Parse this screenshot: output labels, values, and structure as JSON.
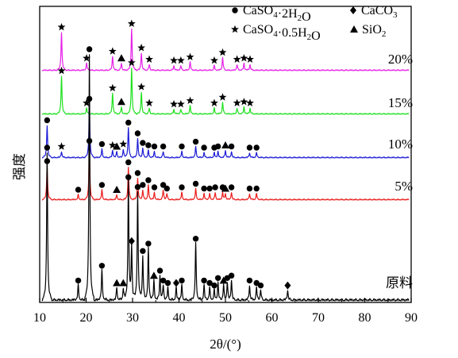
{
  "chart_data": {
    "type": "line",
    "title": "",
    "xlabel": "2θ/(°)",
    "ylabel": "强度",
    "xlim": [
      10,
      90
    ],
    "xticks": [
      10,
      20,
      30,
      40,
      50,
      60,
      70,
      80,
      90
    ],
    "yticks_shown": false,
    "legend": [
      {
        "symbol": "circle",
        "label_parts": [
          [
            "CaSO",
            "n"
          ],
          [
            "4",
            "sub"
          ],
          [
            "·2H",
            "n"
          ],
          [
            "2",
            "sub"
          ],
          [
            "O",
            "n"
          ]
        ]
      },
      {
        "symbol": "diamond",
        "label_parts": [
          [
            "CaCO",
            "n"
          ],
          [
            "3",
            "sub"
          ]
        ]
      },
      {
        "symbol": "star",
        "label_parts": [
          [
            "CaSO",
            "n"
          ],
          [
            "4",
            "sub"
          ],
          [
            "·0.5H",
            "n"
          ],
          [
            "2",
            "sub"
          ],
          [
            "O",
            "n"
          ]
        ]
      },
      {
        "symbol": "triangle",
        "label_parts": [
          [
            "SiO",
            "n"
          ],
          [
            "2",
            "sub"
          ]
        ]
      }
    ],
    "legend_position": "top-right",
    "series": [
      {
        "name": "20%",
        "color": "#e51fe6",
        "peaks": [
          [
            14.7,
            33,
            "star"
          ],
          [
            20.1,
            6,
            "star"
          ],
          [
            25.7,
            12,
            "star"
          ],
          [
            27.6,
            6,
            "triangle"
          ],
          [
            29.8,
            36,
            "star"
          ],
          [
            31.9,
            15,
            "star"
          ],
          [
            33.6,
            5,
            "star"
          ],
          [
            38.9,
            4,
            "star"
          ],
          [
            40.4,
            4,
            "star"
          ],
          [
            42.4,
            7,
            "star"
          ],
          [
            47.6,
            4,
            "star"
          ],
          [
            49.4,
            11,
            "star"
          ],
          [
            52.5,
            5,
            "star"
          ],
          [
            54.0,
            6,
            "star"
          ],
          [
            55.3,
            5,
            "star"
          ]
        ]
      },
      {
        "name": "15%",
        "color": "#1ee01e",
        "peaks": [
          [
            14.7,
            33,
            "star"
          ],
          [
            20.1,
            5,
            "star"
          ],
          [
            25.7,
            18,
            "star"
          ],
          [
            27.6,
            6,
            "triangle"
          ],
          [
            29.8,
            40,
            "star"
          ],
          [
            31.9,
            19,
            "star"
          ],
          [
            33.6,
            5,
            "star"
          ],
          [
            38.9,
            4,
            "star"
          ],
          [
            40.4,
            4,
            "star"
          ],
          [
            42.4,
            7,
            "star"
          ],
          [
            47.6,
            5,
            "star"
          ],
          [
            49.4,
            10,
            "star"
          ],
          [
            52.5,
            5,
            "star"
          ],
          [
            54.0,
            6,
            "star"
          ],
          [
            55.3,
            5,
            "star"
          ]
        ]
      },
      {
        "name": "10%",
        "color": "#1b1bd6",
        "peaks": [
          [
            11.6,
            27,
            "circle"
          ],
          [
            14.7,
            5,
            "star"
          ],
          [
            20.7,
            45,
            "circle"
          ],
          [
            23.4,
            7,
            "circle"
          ],
          [
            25.7,
            6,
            "star"
          ],
          [
            26.6,
            5,
            "triangle"
          ],
          [
            28.0,
            7,
            "star"
          ],
          [
            29.1,
            25,
            "circle"
          ],
          [
            31.1,
            16,
            "circle"
          ],
          [
            32.2,
            8,
            "circle"
          ],
          [
            33.4,
            6,
            "circle"
          ],
          [
            34.7,
            5,
            "circle"
          ],
          [
            36.6,
            5,
            "circle"
          ],
          [
            40.6,
            5,
            "circle"
          ],
          [
            43.6,
            9,
            "circle"
          ],
          [
            45.4,
            4,
            "circle"
          ],
          [
            47.6,
            4,
            "circle"
          ],
          [
            48.4,
            5,
            "circle"
          ],
          [
            50.0,
            6,
            "triangle"
          ],
          [
            51.3,
            5,
            "circle"
          ],
          [
            55.2,
            4,
            "circle"
          ],
          [
            56.7,
            4,
            "circle"
          ]
        ]
      },
      {
        "name": "5%",
        "color": "#ea1c1c",
        "peaks": [
          [
            11.6,
            28,
            "circle"
          ],
          [
            18.3,
            4,
            "circle"
          ],
          [
            20.7,
            45,
            "circle"
          ],
          [
            23.4,
            8,
            "circle"
          ],
          [
            26.6,
            4,
            "triangle"
          ],
          [
            29.1,
            27,
            "circle"
          ],
          [
            31.1,
            18,
            "circle"
          ],
          [
            32.2,
            8,
            "circle"
          ],
          [
            33.4,
            12,
            "circle"
          ],
          [
            34.7,
            6,
            "circle"
          ],
          [
            36.6,
            8,
            "circle"
          ],
          [
            37.4,
            5,
            "circle"
          ],
          [
            40.6,
            6,
            "circle"
          ],
          [
            43.6,
            9,
            "circle"
          ],
          [
            45.4,
            5,
            "circle"
          ],
          [
            46.6,
            5,
            "circle"
          ],
          [
            47.8,
            6,
            "circle"
          ],
          [
            49.4,
            6,
            "circle"
          ],
          [
            50.0,
            5,
            "triangle"
          ],
          [
            51.3,
            6,
            "circle"
          ],
          [
            55.2,
            5,
            "circle"
          ],
          [
            56.7,
            5,
            "circle"
          ]
        ]
      },
      {
        "name": "原料",
        "color": "#000000",
        "peaks": [
          [
            11.6,
            60,
            "circle"
          ],
          [
            18.3,
            6,
            "circle"
          ],
          [
            20.7,
            100,
            "circle"
          ],
          [
            23.4,
            12,
            "circle"
          ],
          [
            26.6,
            5,
            "triangle"
          ],
          [
            28.0,
            5,
            "triangle"
          ],
          [
            29.1,
            48,
            "circle"
          ],
          [
            29.8,
            22,
            "diamond"
          ],
          [
            31.1,
            44,
            "circle"
          ],
          [
            32.2,
            18,
            "circle"
          ],
          [
            33.4,
            21,
            "circle"
          ],
          [
            34.6,
            8,
            "triangle"
          ],
          [
            35.9,
            10,
            "circle"
          ],
          [
            36.6,
            6,
            "circle"
          ],
          [
            37.6,
            5,
            "circle"
          ],
          [
            39.4,
            5,
            "diamond"
          ],
          [
            40.6,
            6,
            "circle"
          ],
          [
            43.6,
            23,
            "circle"
          ],
          [
            45.4,
            6,
            "circle"
          ],
          [
            46.6,
            5,
            "circle"
          ],
          [
            47.6,
            4,
            "circle"
          ],
          [
            48.4,
            7,
            "circle"
          ],
          [
            49.6,
            6,
            "triangle"
          ],
          [
            50.4,
            7,
            "circle"
          ],
          [
            51.3,
            8,
            "circle"
          ],
          [
            55.2,
            6,
            "circle"
          ],
          [
            56.7,
            5,
            "circle"
          ],
          [
            57.6,
            4,
            "circle"
          ],
          [
            63.4,
            4,
            "diamond"
          ]
        ]
      }
    ]
  }
}
